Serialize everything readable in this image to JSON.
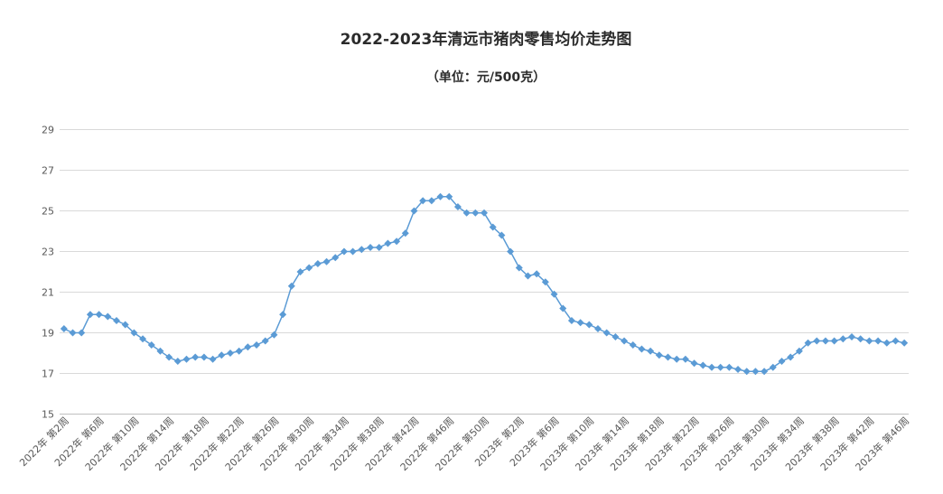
{
  "chart_data": {
    "type": "line",
    "title": "2022-2023年清远市猪肉零售均价走势图",
    "subtitle": "（单位：元/500克）",
    "xlabel": "",
    "ylabel": "",
    "ylim": [
      15,
      29
    ],
    "yticks": [
      15,
      17,
      19,
      21,
      23,
      25,
      27,
      29
    ],
    "grid": true,
    "legend": "none",
    "line_color": "#5b9bd5",
    "x_tick_labels": [
      "2022年 第2周",
      "2022年 第6周",
      "2022年 第10周",
      "2022年 第14周",
      "2022年 第18周",
      "2022年 第22周",
      "2022年 第26周",
      "2022年 第30周",
      "2022年 第34周",
      "2022年 第38周",
      "2022年 第42周",
      "2022年 第46周",
      "2022年 第50周",
      "2023年 第2周",
      "2023年 第6周",
      "2023年 第10周",
      "2023年 第14周",
      "2023年 第18周",
      "2023年 第22周",
      "2023年 第26周",
      "2023年 第30周",
      "2023年 第34周",
      "2023年 第38周",
      "2023年 第42周",
      "2023年 第46周"
    ],
    "tick_every": 4,
    "series": [
      {
        "values": [
          19.2,
          19.0,
          19.0,
          19.9,
          19.9,
          19.8,
          19.6,
          19.4,
          19.0,
          18.7,
          18.4,
          18.1,
          17.8,
          17.6,
          17.7,
          17.8,
          17.8,
          17.7,
          17.9,
          18.0,
          18.1,
          18.3,
          18.4,
          18.6,
          18.9,
          19.9,
          21.3,
          22.0,
          22.2,
          22.4,
          22.5,
          22.7,
          23.0,
          23.0,
          23.1,
          23.2,
          23.2,
          23.4,
          23.5,
          23.9,
          25.0,
          25.5,
          25.5,
          25.7,
          25.7,
          25.2,
          24.9,
          24.9,
          24.9,
          24.2,
          23.8,
          23.0,
          22.2,
          21.8,
          21.9,
          21.5,
          20.9,
          20.2,
          19.6,
          19.5,
          19.4,
          19.2,
          19.0,
          18.8,
          18.6,
          18.4,
          18.2,
          18.1,
          17.9,
          17.8,
          17.7,
          17.7,
          17.5,
          17.4,
          17.3,
          17.3,
          17.3,
          17.2,
          17.1,
          17.1,
          17.1,
          17.3,
          17.6,
          17.8,
          18.1,
          18.5,
          18.6,
          18.6,
          18.6,
          18.7,
          18.8,
          18.7,
          18.6,
          18.6,
          18.5,
          18.6,
          18.5
        ]
      }
    ]
  }
}
